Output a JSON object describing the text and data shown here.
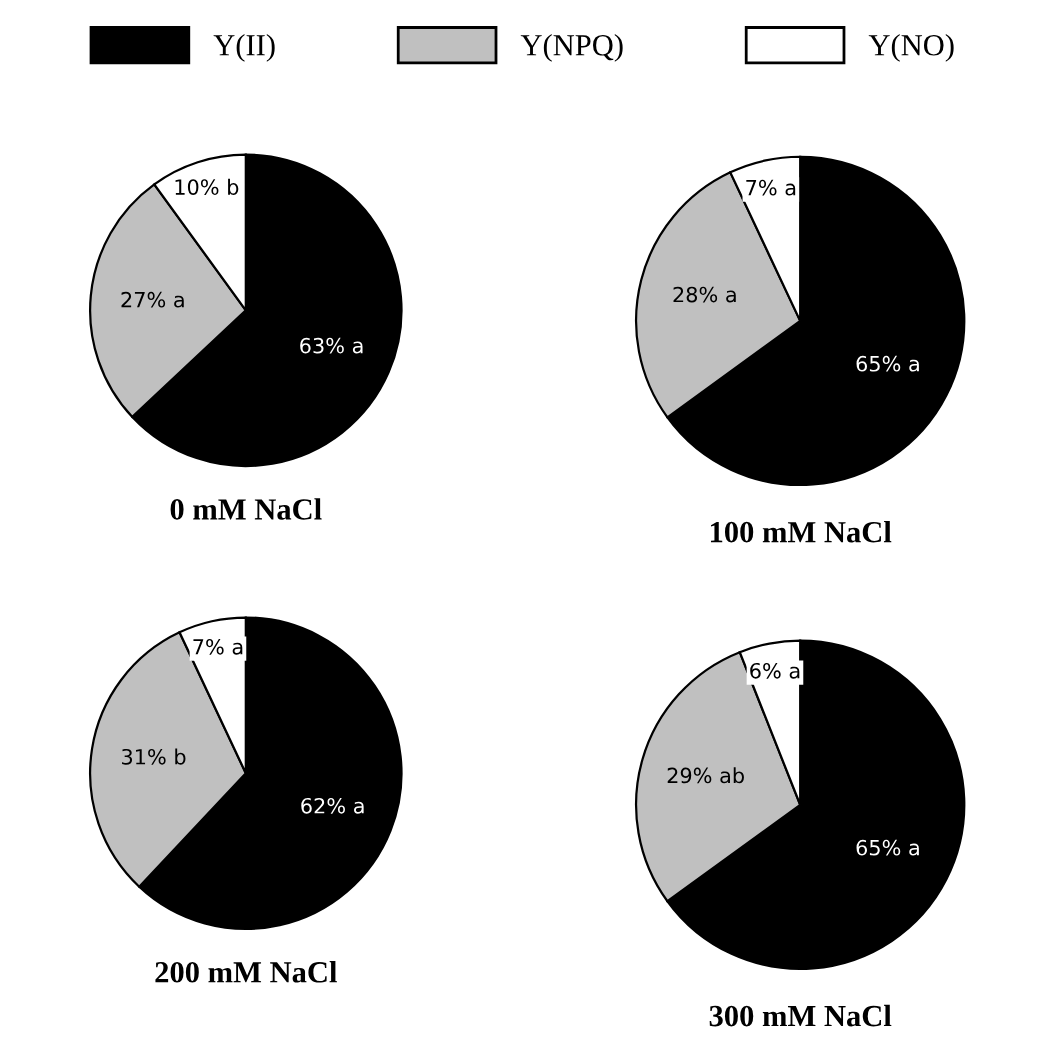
{
  "chart_data": [
    {
      "type": "pie",
      "title": "0 mM NaCl",
      "categories": [
        "Y(II)",
        "Y(NPQ)",
        "Y(NO)"
      ],
      "values": [
        63,
        27,
        10
      ],
      "colors": [
        "#000000",
        "#c0c0c0",
        "#ffffff"
      ],
      "value_labels": [
        "63% a",
        "27% a",
        "10% b"
      ],
      "legend": "top"
    },
    {
      "type": "pie",
      "title": "100 mM NaCl",
      "values": [
        65,
        28,
        7
      ],
      "colors": [
        "#000000",
        "#c0c0c0",
        "#ffffff"
      ],
      "value_labels": [
        "65% a",
        "28% a",
        "7% a"
      ]
    },
    {
      "type": "pie",
      "title": "200 mM NaCl",
      "values": [
        62,
        31,
        7
      ],
      "colors": [
        "#000000",
        "#c0c0c0",
        "#ffffff"
      ],
      "value_labels": [
        "62% a",
        "31% b",
        "7% a"
      ]
    },
    {
      "type": "pie",
      "title": "300 mM NaCl",
      "values": [
        65,
        29,
        6
      ],
      "colors": [
        "#000000",
        "#c0c0c0",
        "#ffffff"
      ],
      "value_labels": [
        "65% a",
        "29% ab",
        "6% a"
      ]
    }
  ]
}
